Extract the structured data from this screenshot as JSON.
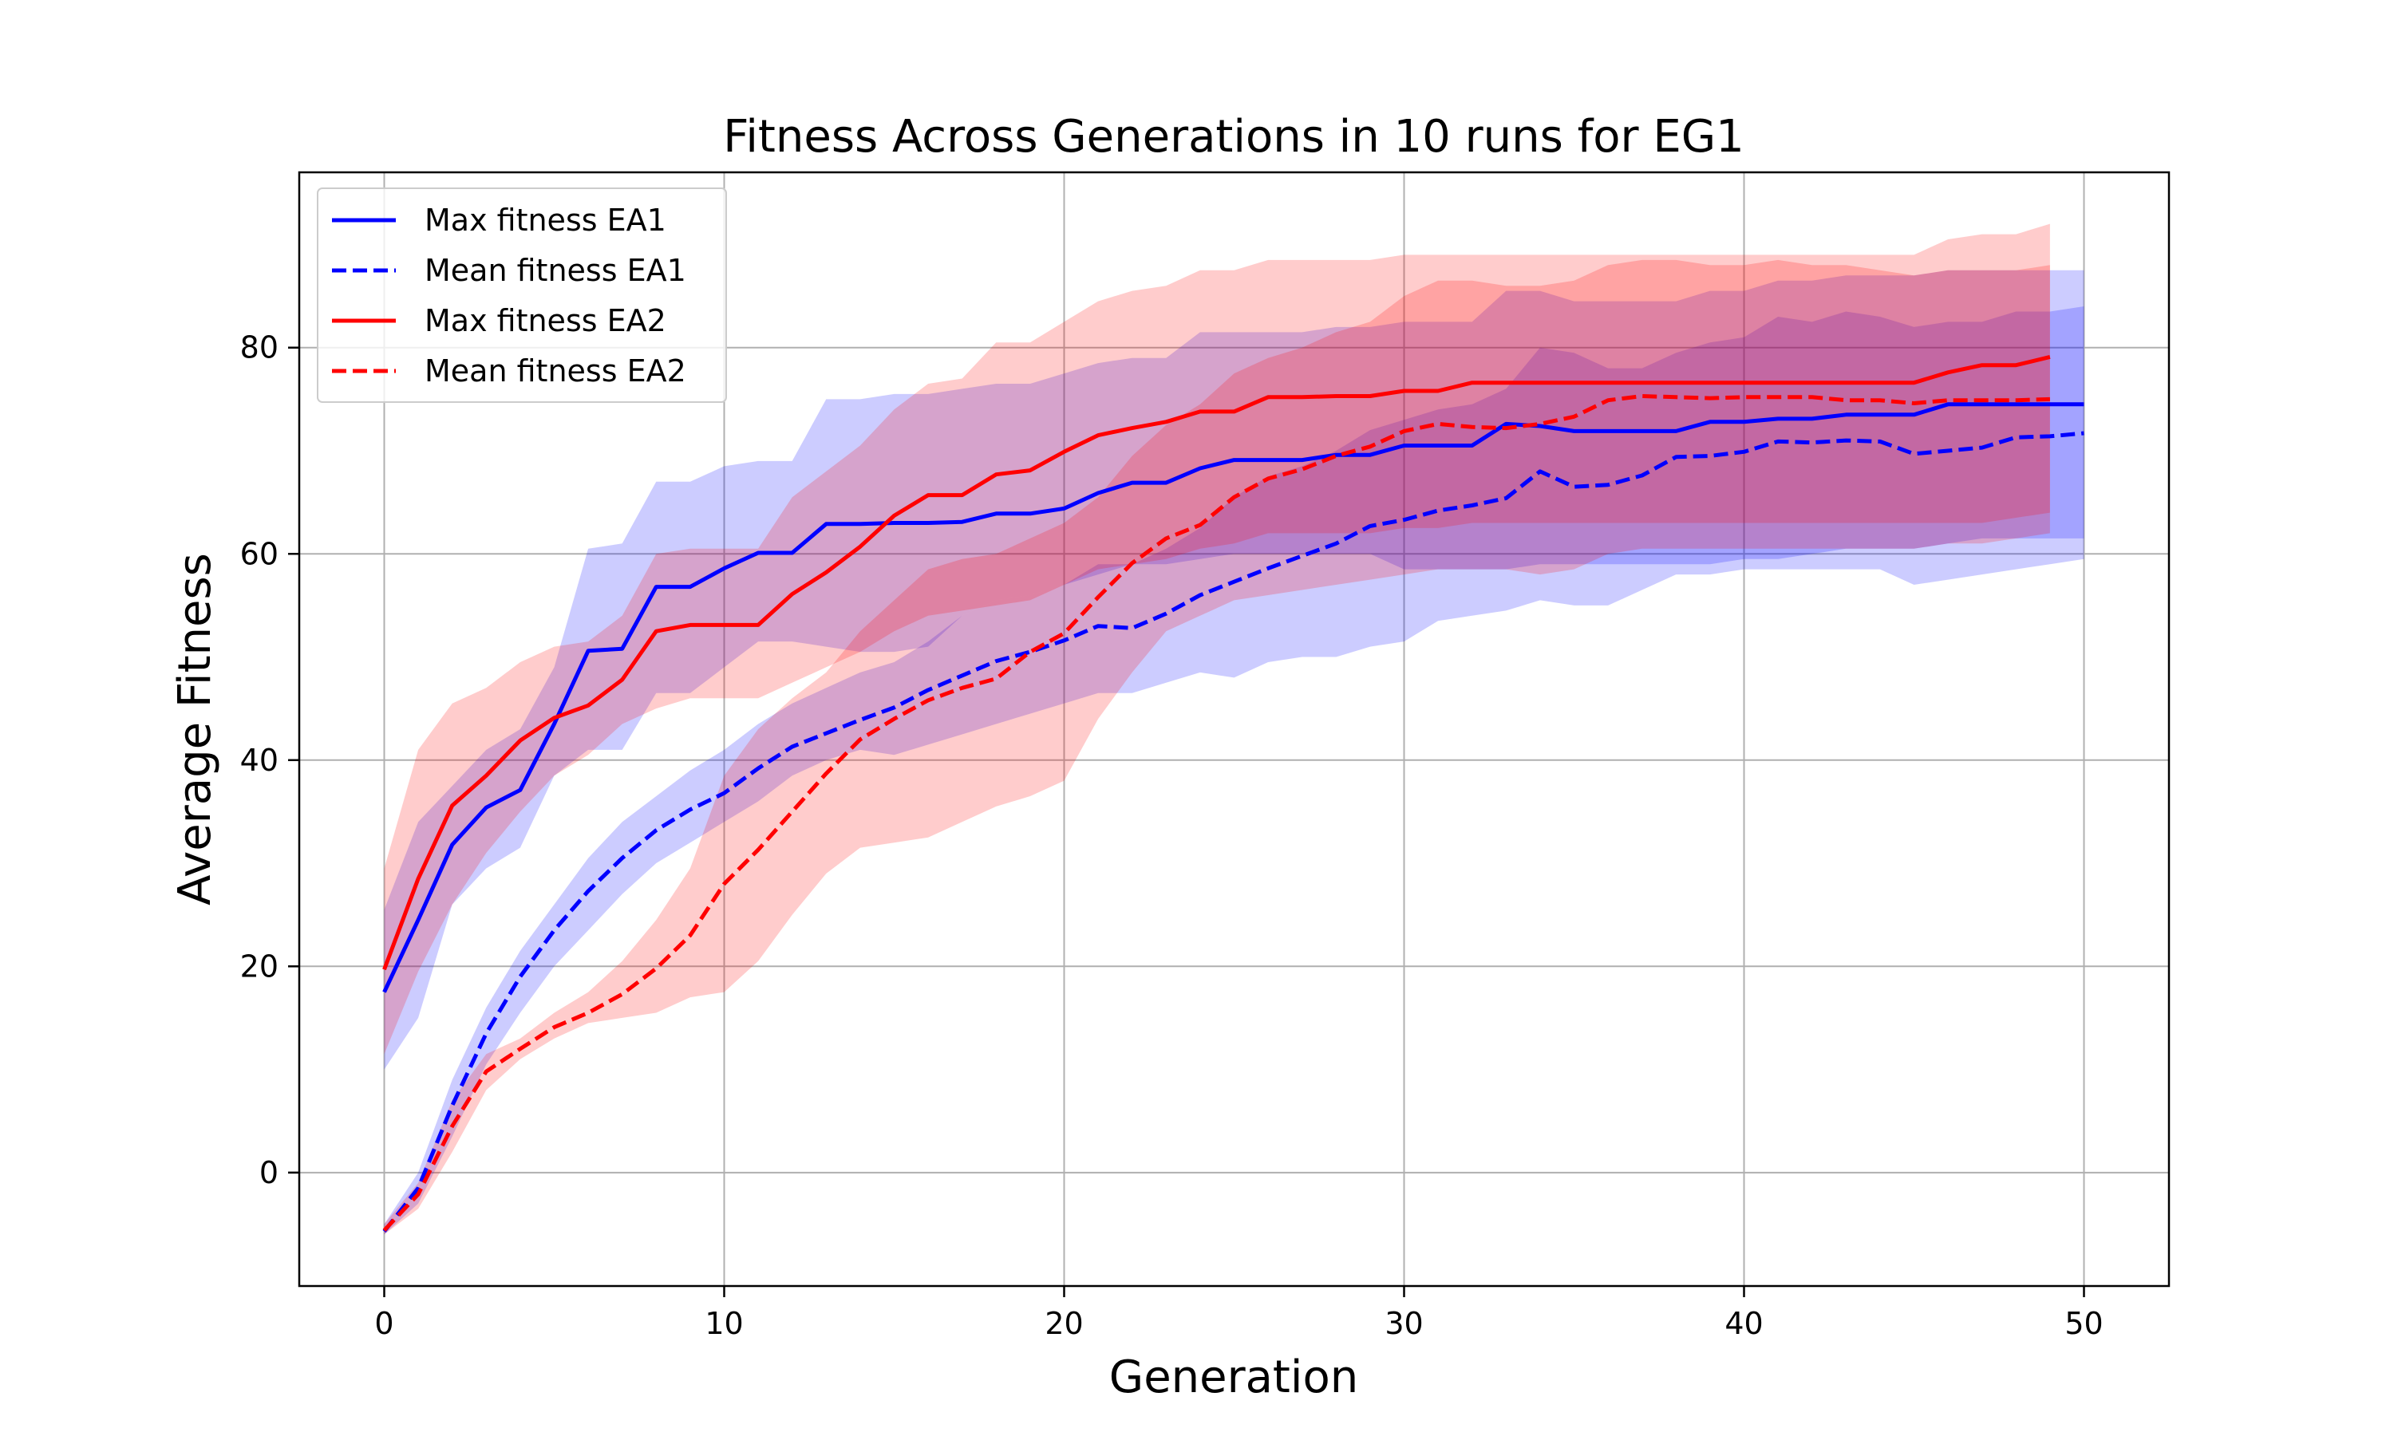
{
  "chart_data": {
    "type": "line",
    "title": "Fitness Across Generations in 10 runs for EG1",
    "xlabel": "Generation",
    "ylabel": "Average Fitness",
    "xlim": [
      -2.5,
      52.5
    ],
    "ylim": [
      -11,
      97
    ],
    "xticks": [
      0,
      10,
      20,
      30,
      40,
      50
    ],
    "yticks": [
      0,
      20,
      40,
      60,
      80
    ],
    "grid": true,
    "legend_position": "upper-left",
    "colors": {
      "EA1": "#0000ff",
      "EA2": "#ff0000",
      "grid": "#b0b0b0"
    },
    "series": [
      {
        "name": "Max fitness EA1",
        "color": "#0000ff",
        "style": "solid",
        "x": [
          0,
          1,
          2,
          3,
          4,
          5,
          6,
          7,
          8,
          9,
          10,
          11,
          12,
          13,
          14,
          15,
          16,
          17,
          18,
          19,
          20,
          21,
          22,
          23,
          24,
          25,
          26,
          27,
          28,
          29,
          30,
          31,
          32,
          33,
          34,
          35,
          36,
          37,
          38,
          39,
          40,
          41,
          42,
          43,
          44,
          45,
          46,
          47,
          48,
          49,
          50
        ],
        "y": [
          17.5,
          24.5,
          31.8,
          35.4,
          37.1,
          43.5,
          50.6,
          50.8,
          56.8,
          56.8,
          58.6,
          60.1,
          60.1,
          62.9,
          62.9,
          63.0,
          63.0,
          63.1,
          63.9,
          63.9,
          64.4,
          65.9,
          66.9,
          66.9,
          68.3,
          69.1,
          69.1,
          69.1,
          69.6,
          69.6,
          70.5,
          70.5,
          70.5,
          72.6,
          72.4,
          71.9,
          71.9,
          71.9,
          71.9,
          72.8,
          72.8,
          73.1,
          73.1,
          73.5,
          73.5,
          73.5,
          74.5,
          74.5,
          74.5,
          74.5,
          74.5
        ],
        "band_low": [
          10.0,
          15.0,
          26.0,
          29.5,
          31.5,
          38.5,
          41.0,
          41.0,
          46.5,
          46.5,
          49.0,
          51.5,
          51.5,
          51.0,
          50.5,
          50.5,
          51.0,
          54.0,
          55.5,
          56.0,
          57.0,
          58.0,
          59.0,
          59.0,
          59.5,
          60.0,
          60.0,
          60.0,
          60.0,
          60.0,
          58.5,
          58.5,
          58.5,
          58.5,
          59.0,
          59.0,
          59.0,
          59.0,
          59.0,
          59.0,
          59.5,
          59.5,
          60.0,
          60.5,
          60.5,
          60.5,
          61.0,
          61.5,
          61.5,
          61.5,
          61.5
        ],
        "band_high": [
          25.5,
          34.0,
          37.5,
          41.0,
          43.0,
          49.0,
          60.5,
          61.0,
          67.0,
          67.0,
          68.5,
          69.0,
          69.0,
          75.0,
          75.0,
          75.5,
          75.5,
          76.0,
          76.5,
          76.5,
          77.5,
          78.5,
          79.0,
          79.0,
          81.5,
          81.5,
          81.5,
          81.5,
          82.0,
          82.0,
          82.5,
          82.5,
          82.5,
          85.5,
          85.5,
          84.5,
          84.5,
          84.5,
          84.5,
          85.5,
          85.5,
          86.5,
          86.5,
          87.0,
          87.0,
          87.0,
          87.5,
          87.5,
          87.5,
          87.5,
          87.5
        ]
      },
      {
        "name": "Mean fitness EA1",
        "color": "#0000ff",
        "style": "dashed",
        "x": [
          0,
          1,
          2,
          3,
          4,
          5,
          6,
          7,
          8,
          9,
          10,
          11,
          12,
          13,
          14,
          15,
          16,
          17,
          18,
          19,
          20,
          21,
          22,
          23,
          24,
          25,
          26,
          27,
          28,
          29,
          30,
          31,
          32,
          33,
          34,
          35,
          36,
          37,
          38,
          39,
          40,
          41,
          42,
          43,
          44,
          45,
          46,
          47,
          48,
          49,
          50
        ],
        "y": [
          -5.7,
          -1.5,
          6.5,
          13.5,
          19.0,
          23.5,
          27.3,
          30.5,
          33.2,
          35.2,
          36.8,
          39.2,
          41.3,
          42.6,
          43.9,
          45.1,
          46.8,
          48.2,
          49.6,
          50.5,
          51.6,
          53.0,
          52.8,
          54.2,
          56.0,
          57.3,
          58.6,
          59.8,
          61.0,
          62.7,
          63.3,
          64.2,
          64.7,
          65.4,
          68.0,
          66.5,
          66.7,
          67.6,
          69.4,
          69.5,
          69.9,
          70.9,
          70.8,
          71.0,
          70.9,
          69.7,
          70.0,
          70.3,
          71.3,
          71.4,
          71.7
        ],
        "band_low": [
          -6.0,
          -3.0,
          3.5,
          10.5,
          15.5,
          20.0,
          23.5,
          27.0,
          30.0,
          32.0,
          34.0,
          36.0,
          38.5,
          40.0,
          41.0,
          40.5,
          41.5,
          42.5,
          43.5,
          44.5,
          45.5,
          46.5,
          46.5,
          47.5,
          48.5,
          48.0,
          49.5,
          50.0,
          50.0,
          51.0,
          51.5,
          53.5,
          54.0,
          54.5,
          55.5,
          55.0,
          55.0,
          56.5,
          58.0,
          58.0,
          58.5,
          58.5,
          58.5,
          58.5,
          58.5,
          57.0,
          57.5,
          58.0,
          58.5,
          59.0,
          59.5
        ],
        "band_high": [
          -5.0,
          0.0,
          9.0,
          16.0,
          21.5,
          26.0,
          30.5,
          34.0,
          36.5,
          39.0,
          41.0,
          43.5,
          45.5,
          47.0,
          48.5,
          49.5,
          51.5,
          54.0,
          55.5,
          56.0,
          57.0,
          59.0,
          59.0,
          60.5,
          62.5,
          65.5,
          67.5,
          68.5,
          70.0,
          72.0,
          73.0,
          74.0,
          74.5,
          76.0,
          80.0,
          79.5,
          78.0,
          78.0,
          79.5,
          80.5,
          81.0,
          83.0,
          82.5,
          83.5,
          83.0,
          82.0,
          82.5,
          82.5,
          83.5,
          83.5,
          84.0
        ]
      },
      {
        "name": "Max fitness EA2",
        "color": "#ff0000",
        "style": "solid",
        "x": [
          0,
          1,
          2,
          3,
          4,
          5,
          6,
          7,
          8,
          9,
          10,
          11,
          12,
          13,
          14,
          15,
          16,
          17,
          18,
          19,
          20,
          21,
          22,
          23,
          24,
          25,
          26,
          27,
          28,
          29,
          30,
          31,
          32,
          33,
          34,
          35,
          36,
          37,
          38,
          39,
          40,
          41,
          42,
          43,
          44,
          45,
          46,
          47,
          48,
          49
        ],
        "y": [
          19.7,
          28.5,
          35.6,
          38.5,
          41.9,
          44.1,
          45.3,
          47.8,
          52.5,
          53.1,
          53.1,
          53.1,
          56.1,
          58.2,
          60.7,
          63.7,
          65.7,
          65.7,
          67.7,
          68.1,
          69.9,
          71.5,
          72.2,
          72.8,
          73.8,
          73.8,
          75.2,
          75.2,
          75.3,
          75.3,
          75.8,
          75.8,
          76.6,
          76.6,
          76.6,
          76.6,
          76.6,
          76.6,
          76.6,
          76.6,
          76.6,
          76.6,
          76.6,
          76.6,
          76.6,
          76.6,
          77.6,
          78.3,
          78.3,
          79.1
        ],
        "band_low": [
          11.5,
          19.5,
          26.0,
          31.0,
          35.0,
          38.5,
          40.5,
          43.5,
          45.0,
          46.0,
          46.0,
          46.0,
          47.5,
          49.0,
          50.5,
          52.5,
          54.0,
          54.5,
          55.0,
          55.5,
          57.0,
          58.5,
          59.0,
          59.5,
          60.5,
          61.0,
          62.0,
          62.0,
          62.0,
          62.0,
          62.5,
          62.5,
          63.0,
          63.0,
          63.0,
          63.0,
          63.0,
          63.0,
          63.0,
          63.0,
          63.0,
          63.0,
          63.0,
          63.0,
          63.0,
          63.0,
          63.0,
          63.0,
          63.5,
          64.0
        ],
        "band_high": [
          29.5,
          41.0,
          45.5,
          47.0,
          49.5,
          51.0,
          51.5,
          54.0,
          60.0,
          60.5,
          60.5,
          60.5,
          65.5,
          68.0,
          70.5,
          74.0,
          76.5,
          77.0,
          80.5,
          80.5,
          82.5,
          84.5,
          85.5,
          86.0,
          87.5,
          87.5,
          88.5,
          88.5,
          88.5,
          88.5,
          89.0,
          89.0,
          89.0,
          89.0,
          89.0,
          89.0,
          89.0,
          89.0,
          89.0,
          89.0,
          89.0,
          89.0,
          89.0,
          89.0,
          89.0,
          89.0,
          90.5,
          91.0,
          91.0,
          92.0
        ]
      },
      {
        "name": "Mean fitness EA2",
        "color": "#ff0000",
        "style": "dashed",
        "x": [
          0,
          1,
          2,
          3,
          4,
          5,
          6,
          7,
          8,
          9,
          10,
          11,
          12,
          13,
          14,
          15,
          16,
          17,
          18,
          19,
          20,
          21,
          22,
          23,
          24,
          25,
          26,
          27,
          28,
          29,
          30,
          31,
          32,
          33,
          34,
          35,
          36,
          37,
          38,
          39,
          40,
          41,
          42,
          43,
          44,
          45,
          46,
          47,
          48,
          49
        ],
        "y": [
          -5.6,
          -2.1,
          4.5,
          9.8,
          12.0,
          14.1,
          15.5,
          17.3,
          19.8,
          23.0,
          28.0,
          31.3,
          35.0,
          38.7,
          42.0,
          44.0,
          45.8,
          47.0,
          47.9,
          50.5,
          52.3,
          55.8,
          59.1,
          61.5,
          62.8,
          65.5,
          67.3,
          68.2,
          69.5,
          70.4,
          71.9,
          72.6,
          72.3,
          72.2,
          72.6,
          73.3,
          74.9,
          75.3,
          75.2,
          75.1,
          75.2,
          75.2,
          75.2,
          74.9,
          74.9,
          74.6,
          74.9,
          74.9,
          74.9,
          75.0
        ],
        "band_low": [
          -6.0,
          -3.5,
          2.0,
          8.0,
          11.0,
          13.0,
          14.5,
          15.0,
          15.5,
          17.0,
          17.5,
          20.5,
          25.0,
          29.0,
          31.5,
          32.0,
          32.5,
          34.0,
          35.5,
          36.5,
          38.0,
          44.0,
          48.5,
          52.5,
          54.0,
          55.5,
          56.0,
          56.5,
          57.0,
          57.5,
          58.0,
          58.5,
          58.5,
          58.5,
          58.0,
          58.5,
          60.0,
          60.5,
          60.5,
          60.5,
          60.5,
          60.5,
          60.5,
          60.5,
          60.5,
          60.5,
          61.0,
          61.0,
          61.5,
          62.0
        ],
        "band_high": [
          -5.0,
          -1.0,
          7.0,
          11.5,
          13.0,
          15.5,
          17.5,
          20.5,
          24.5,
          29.5,
          38.5,
          43.0,
          46.0,
          48.5,
          52.5,
          55.5,
          58.5,
          59.5,
          60.0,
          61.5,
          63.0,
          65.5,
          69.5,
          72.5,
          74.5,
          77.5,
          79.0,
          80.0,
          81.5,
          82.5,
          85.0,
          86.5,
          86.5,
          86.0,
          86.0,
          86.5,
          88.0,
          88.5,
          88.5,
          88.0,
          88.0,
          88.5,
          88.0,
          88.0,
          87.5,
          87.0,
          87.5,
          87.5,
          87.5,
          88.0
        ]
      }
    ]
  }
}
